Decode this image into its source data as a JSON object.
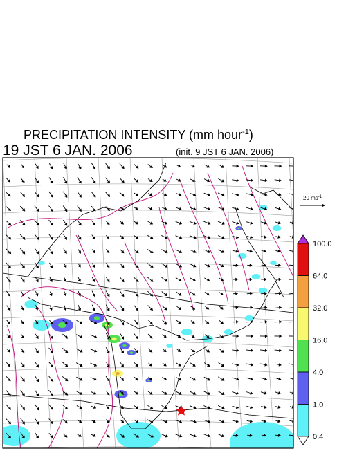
{
  "header": {
    "title_main": "PRECIPITATION INTENSITY (mm hour",
    "title_exponent": "-1",
    "title_close": ")",
    "valid_time": "19 JST 6 JAN. 2006",
    "init_time": "(init. 9 JST 6 JAN. 2006)"
  },
  "wind_scale": {
    "label": "20 ms",
    "exponent": "-1"
  },
  "colorbar": {
    "levels": [
      {
        "label": "100.0",
        "color": "#e01010"
      },
      {
        "label": "64.0",
        "color": "#f5a040"
      },
      {
        "label": "32.0",
        "color": "#f8f870"
      },
      {
        "label": "16.0",
        "color": "#50e050"
      },
      {
        "label": "4.0",
        "color": "#6060f0"
      },
      {
        "label": "1.0",
        "color": "#60f0f8"
      },
      {
        "label": "0.4",
        "color": "#ffffff"
      }
    ],
    "top_color": "#b030e0"
  }
}
